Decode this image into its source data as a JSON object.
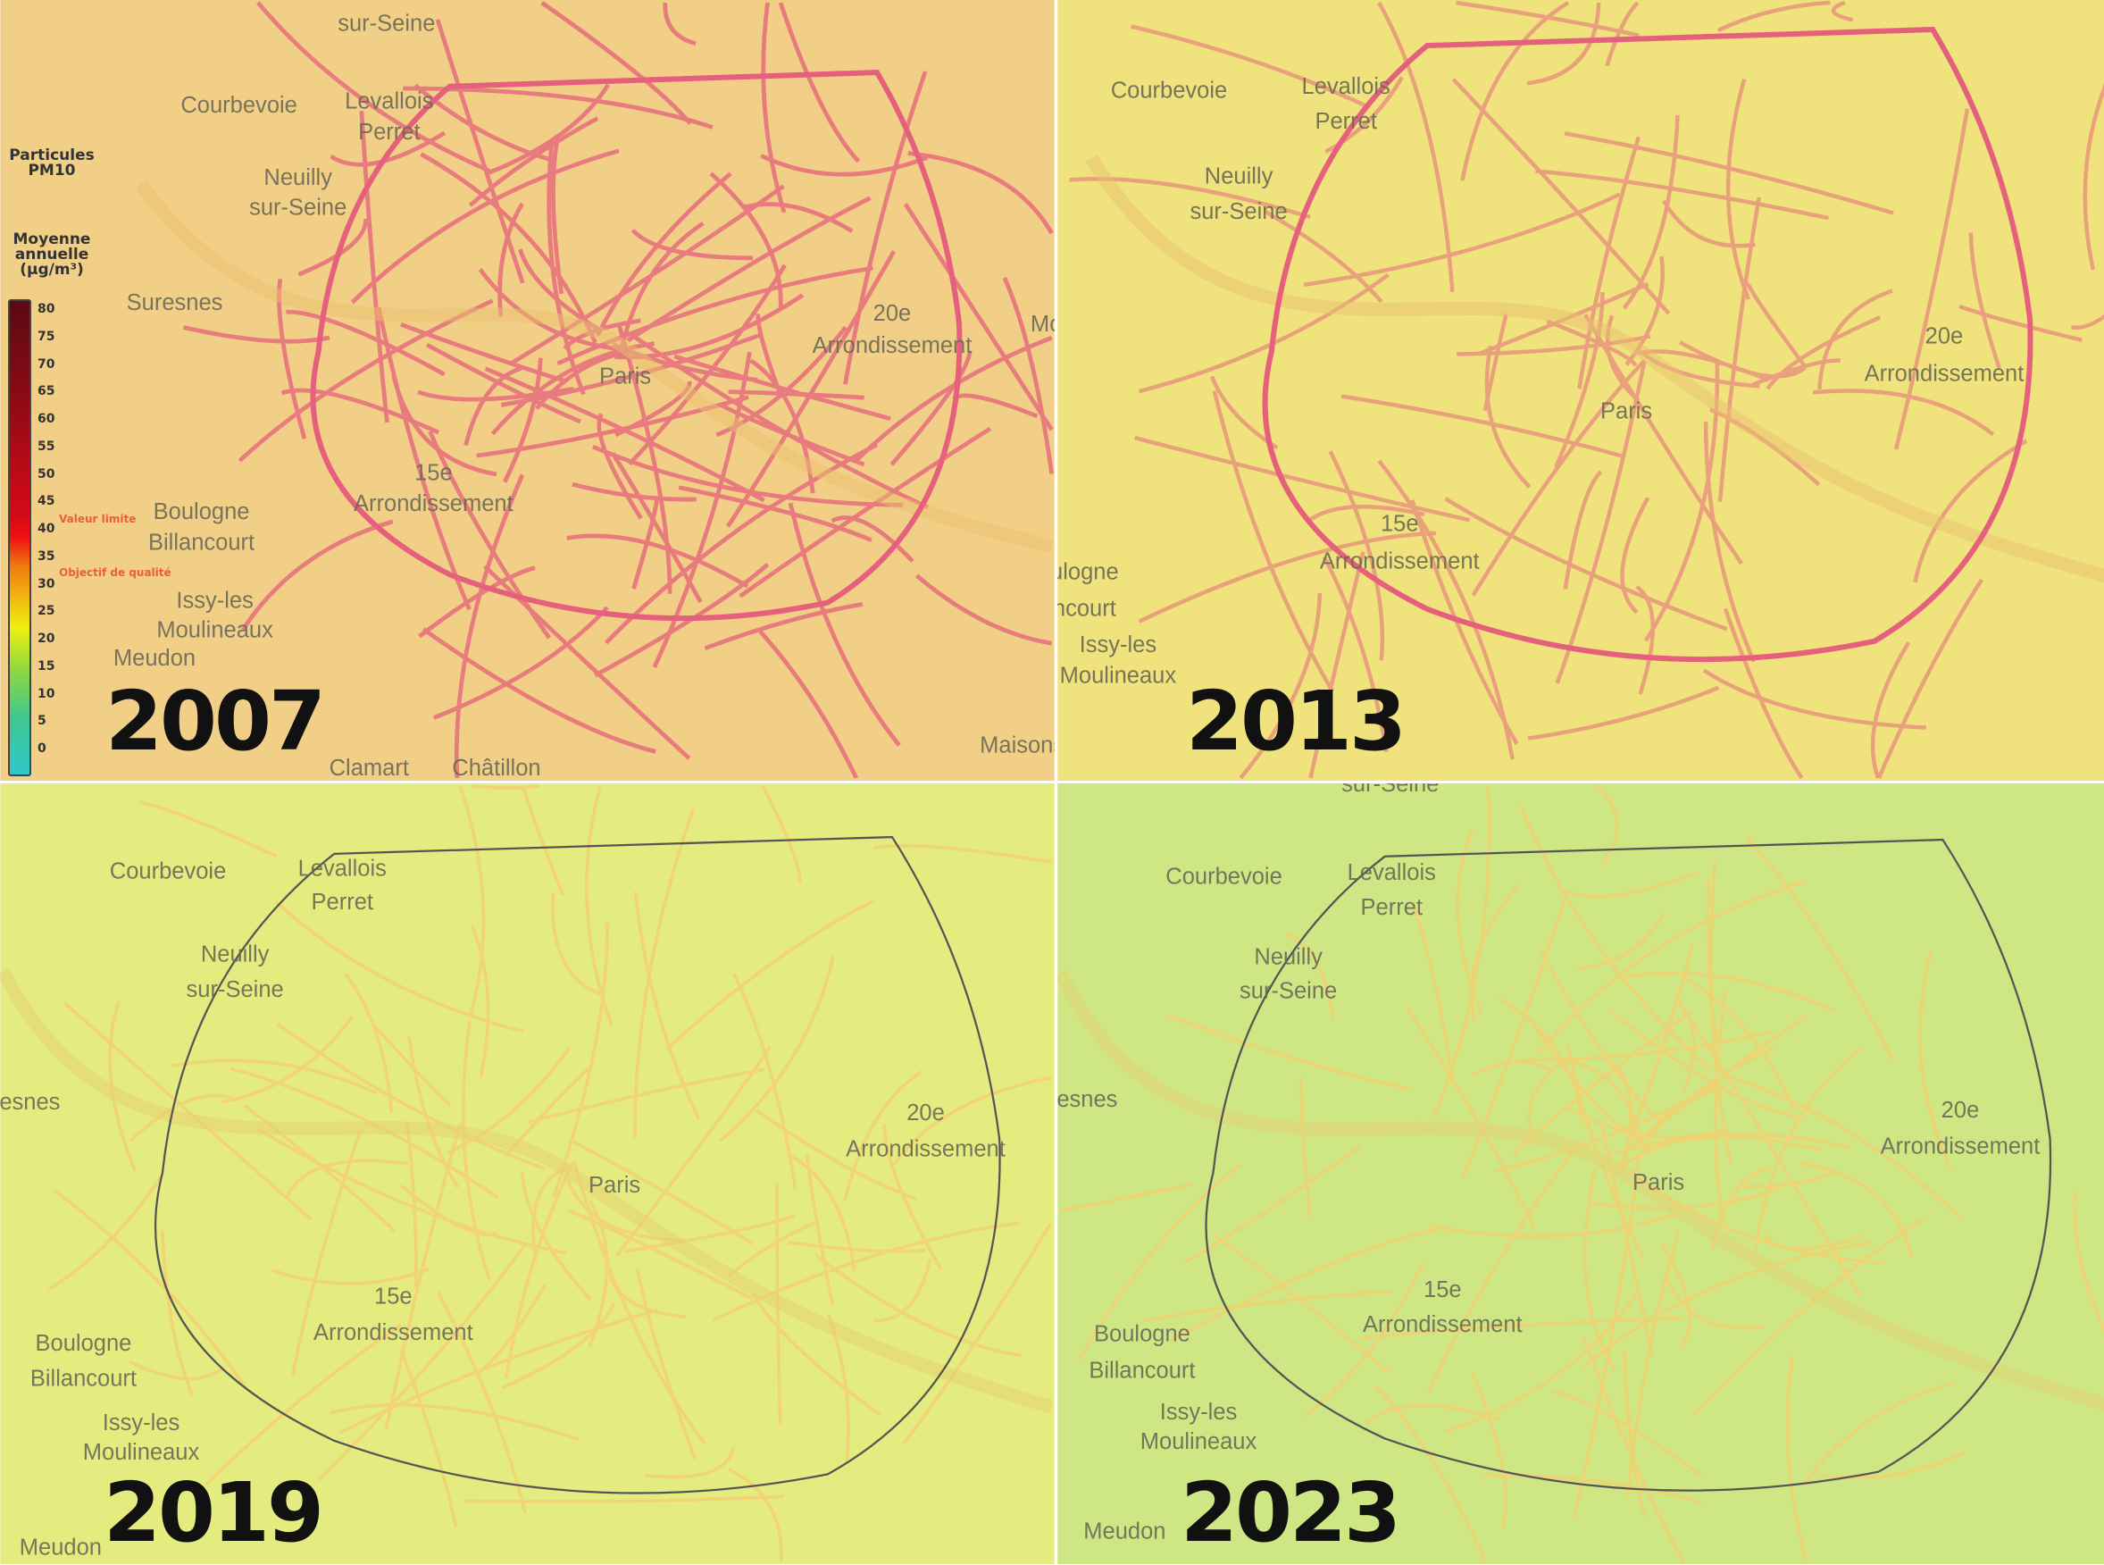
{
  "legend": {
    "title": "Particules PM10",
    "subtitle": "Moyenne annuelle (µg/m³)",
    "ticks": [
      "80",
      "75",
      "70",
      "65",
      "60",
      "55",
      "50",
      "45",
      "40",
      "35",
      "30",
      "25",
      "20",
      "15",
      "10",
      "5",
      "0"
    ],
    "limit_label": "Valeur limite",
    "quality_label": "Objectif de qualité",
    "limit_value": 40,
    "quality_value": 30
  },
  "colors": {
    "road": "#e4607c",
    "boundary": "#555555"
  },
  "panels": [
    {
      "year": "2007",
      "background": "#f2cf86",
      "labels": [
        "sur-Seine",
        "Courbevoie",
        "Levallois",
        "Perret",
        "Neuilly",
        "sur-Seine",
        "Suresnes",
        "20e",
        "Arrondissement",
        "Paris",
        "15e",
        "Arrondissement",
        "Boulogne",
        "Billancourt",
        "Issy-les",
        "Moulineaux",
        "Meudon",
        "Clamart",
        "Châtillon",
        "Maisons",
        "Mo"
      ]
    },
    {
      "year": "2013",
      "background": "#f0e27c",
      "labels": [
        "Courbevoie",
        "Levallois",
        "Perret",
        "Neuilly",
        "sur-Seine",
        "20e",
        "Arrondissement",
        "Paris",
        "15e",
        "Arrondissement",
        "ulogne",
        "ncourt",
        "Issy-les",
        "Moulineaux"
      ]
    },
    {
      "year": "2019",
      "background": "#e4ec80",
      "labels": [
        "Courbevoie",
        "Levallois",
        "Perret",
        "Neuilly",
        "sur-Seine",
        "esnes",
        "20e",
        "Arrondissement",
        "Paris",
        "15e",
        "Arrondissement",
        "Boulogne",
        "Billancourt",
        "Issy-les",
        "Moulineaux",
        "Meudon"
      ]
    },
    {
      "year": "2023",
      "background": "#cfe684",
      "labels": [
        "sur-Seine",
        "Courbevoie",
        "Levallois",
        "Perret",
        "Neuilly",
        "sur-Seine",
        "esnes",
        "20e",
        "Arrondissement",
        "Paris",
        "15e",
        "Arrondissement",
        "Boulogne",
        "Billancourt",
        "Issy-les",
        "Moulineaux",
        "Meudon"
      ]
    }
  ]
}
